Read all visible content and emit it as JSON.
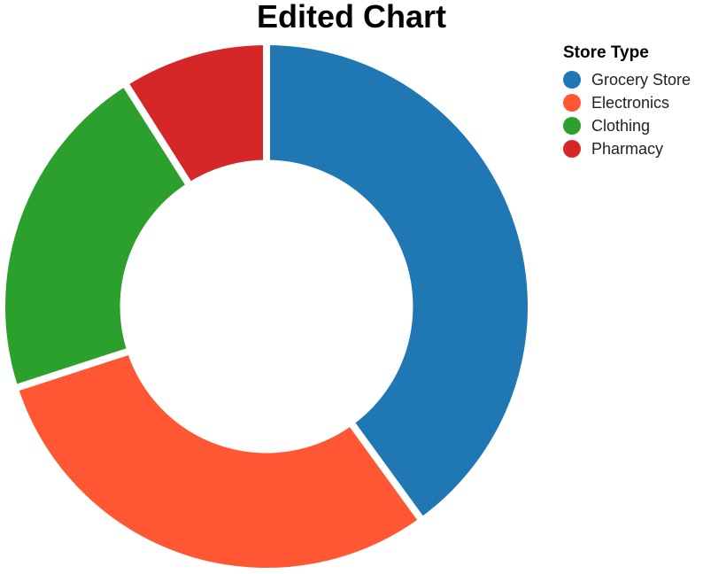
{
  "chart_data": {
    "type": "pie",
    "title": "Edited Chart",
    "legend_title": "Store Type",
    "legend_position": "top-right",
    "hole": 0.54,
    "categories": [
      "Grocery Store",
      "Electronics",
      "Clothing",
      "Pharmacy"
    ],
    "values": [
      40,
      30,
      21,
      9
    ],
    "colors": [
      "#1f77b4",
      "#ff5733",
      "#2ca02c",
      "#d62728"
    ]
  }
}
